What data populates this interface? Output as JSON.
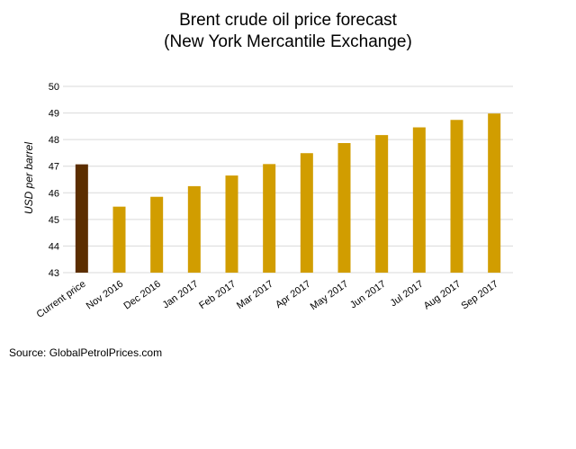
{
  "chart_data": {
    "type": "bar",
    "title": "Brent crude oil price forecast",
    "subtitle": "(New York Mercantile Exchange)",
    "xlabel": "",
    "ylabel": "USD per barrel",
    "ylim": [
      43,
      50
    ],
    "yticks": [
      "43",
      "44",
      "45",
      "46",
      "47",
      "48",
      "49",
      "50"
    ],
    "grid": true,
    "legend": "none",
    "categories": [
      "Current price",
      "Nov 2016",
      "Dec 2016",
      "Jan 2017",
      "Feb 2017",
      "Mar 2017",
      "Apr 2017",
      "May 2017",
      "Jun 2017",
      "Jul 2017",
      "Aug 2017",
      "Sep 2017"
    ],
    "values": [
      47.07,
      45.48,
      45.85,
      46.25,
      46.65,
      47.08,
      47.49,
      47.87,
      48.17,
      48.46,
      48.74,
      48.98
    ],
    "bar_colors": [
      "#5c2e00",
      "#d19d00",
      "#d19d00",
      "#d19d00",
      "#d19d00",
      "#d19d00",
      "#d19d00",
      "#d19d00",
      "#d19d00",
      "#d19d00",
      "#d19d00",
      "#d19d00"
    ],
    "source": "Source: GlobalPetrolPrices.com"
  }
}
